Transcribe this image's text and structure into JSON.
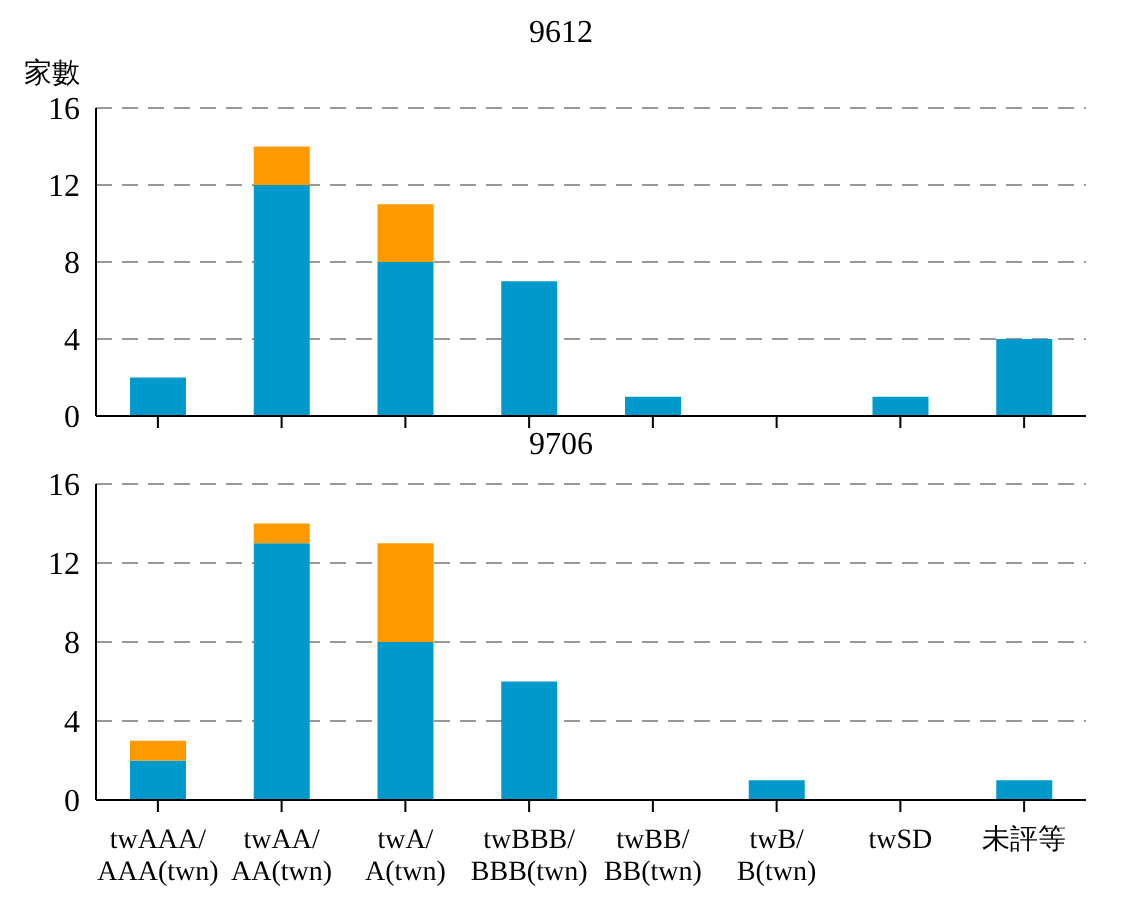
{
  "chart_data": [
    {
      "type": "bar",
      "title": "9612",
      "ylabel": "家數",
      "stacked": true,
      "categories": [
        null,
        null,
        null,
        null,
        null,
        null,
        null,
        null
      ],
      "series": [
        {
          "color": "#0099cc",
          "values": [
            2,
            12,
            8,
            7,
            1,
            0,
            1,
            4
          ]
        },
        {
          "color": "#ff9900",
          "values": [
            0,
            2,
            3,
            0,
            0,
            0,
            0,
            0
          ]
        }
      ],
      "ylim": [
        0,
        16
      ],
      "yticks": [
        0,
        4,
        8,
        12,
        16
      ],
      "grid": "y",
      "tick_labels": "y"
    },
    {
      "type": "bar",
      "title": "9706",
      "stacked": true,
      "categories": [
        "twAAA/AAA(twn)",
        "twAA/AA(twn)",
        "twA/A(twn)",
        "twBBB/BBB(twn)",
        "twBB/BB(twn)",
        "twB/B(twn)",
        "twSD",
        "未評等"
      ],
      "series": [
        {
          "color": "#0099cc",
          "values": [
            2,
            13,
            8,
            6,
            0,
            1,
            0,
            1
          ]
        },
        {
          "color": "#ff9900",
          "values": [
            1,
            1,
            5,
            0,
            0,
            0,
            0,
            0
          ]
        }
      ],
      "ylim": [
        0,
        16
      ],
      "yticks": [
        0,
        4,
        8,
        12,
        16
      ],
      "grid": "y"
    }
  ]
}
